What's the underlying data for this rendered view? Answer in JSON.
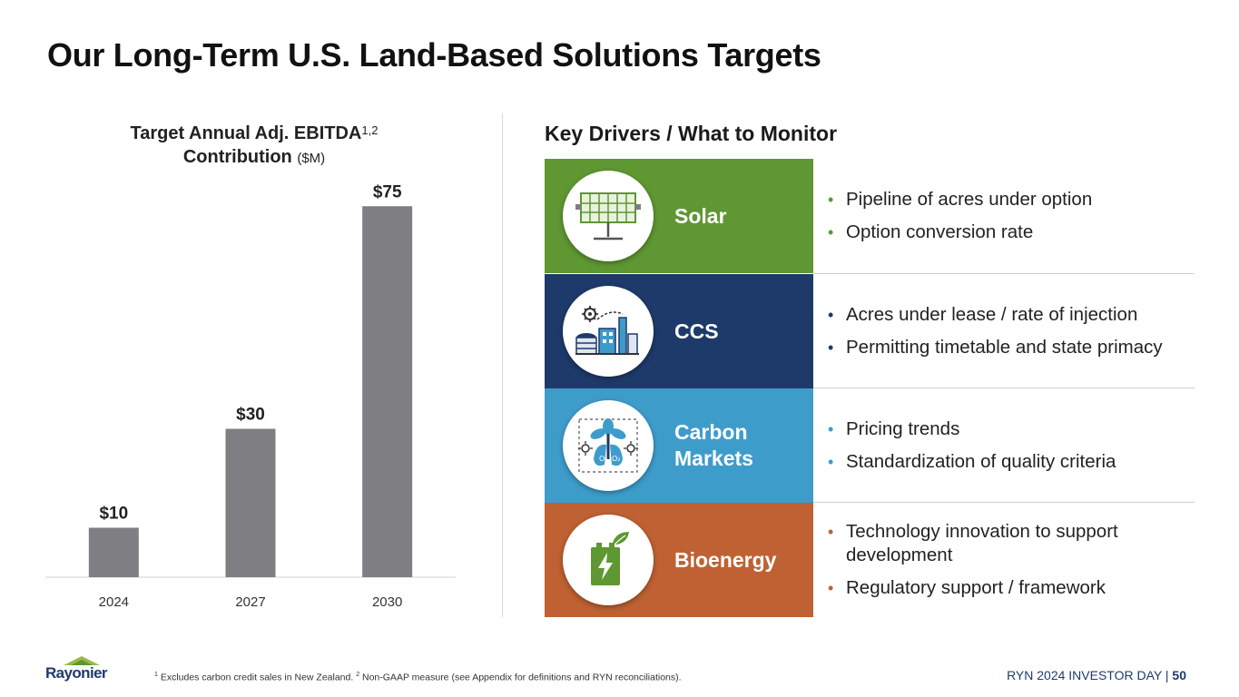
{
  "title": "Our Long-Term U.S. Land-Based Solutions Targets",
  "chart": {
    "title_line1": "Target Annual Adj. EBITDA",
    "title_sup": "1,2",
    "title_line2": "Contribution",
    "title_unit": "($M)"
  },
  "chart_data": {
    "type": "bar",
    "categories": [
      "2024",
      "2027",
      "2030"
    ],
    "values": [
      10,
      30,
      75
    ],
    "data_labels": [
      "$10",
      "$30",
      "$75"
    ],
    "title": "Target Annual Adj. EBITDA Contribution ($M)",
    "xlabel": "",
    "ylabel": "",
    "ylim": [
      0,
      80
    ],
    "bar_color": "#7f7e83"
  },
  "drivers": {
    "title": "Key Drivers / What to Monitor",
    "items": [
      {
        "name": "Solar",
        "icon": "solar-panel-icon",
        "color": "#5f9732",
        "bullet_color": "#5f9732",
        "bullets": [
          "Pipeline of acres under option",
          "Option conversion rate"
        ]
      },
      {
        "name": "CCS",
        "icon": "factory-gear-icon",
        "color": "#1e3a6a",
        "bullet_color": "#1e3a6a",
        "bullets": [
          "Acres under lease / rate of injection",
          "Permitting timetable and state primacy"
        ]
      },
      {
        "name": "Carbon Markets",
        "icon": "tree-lungs-icon",
        "color": "#3e9ccb",
        "bullet_color": "#3e9ccb",
        "bullets": [
          "Pricing trends",
          "Standardization of quality criteria"
        ]
      },
      {
        "name": "Bioenergy",
        "icon": "battery-leaf-icon",
        "color": "#bf6132",
        "bullet_color": "#bf6132",
        "bullets": [
          "Technology innovation to support development",
          "Regulatory support / framework"
        ]
      }
    ]
  },
  "footer": {
    "note_sup1": "1",
    "note_part1": " Excludes carbon credit sales in New Zealand. ",
    "note_sup2": "2",
    "note_part2": " Non-GAAP measure (see Appendix for definitions and RYN reconciliations).",
    "event": "RYN 2024 INVESTOR DAY",
    "separator": "|",
    "page": "50",
    "logo_text": "Rayonier"
  }
}
